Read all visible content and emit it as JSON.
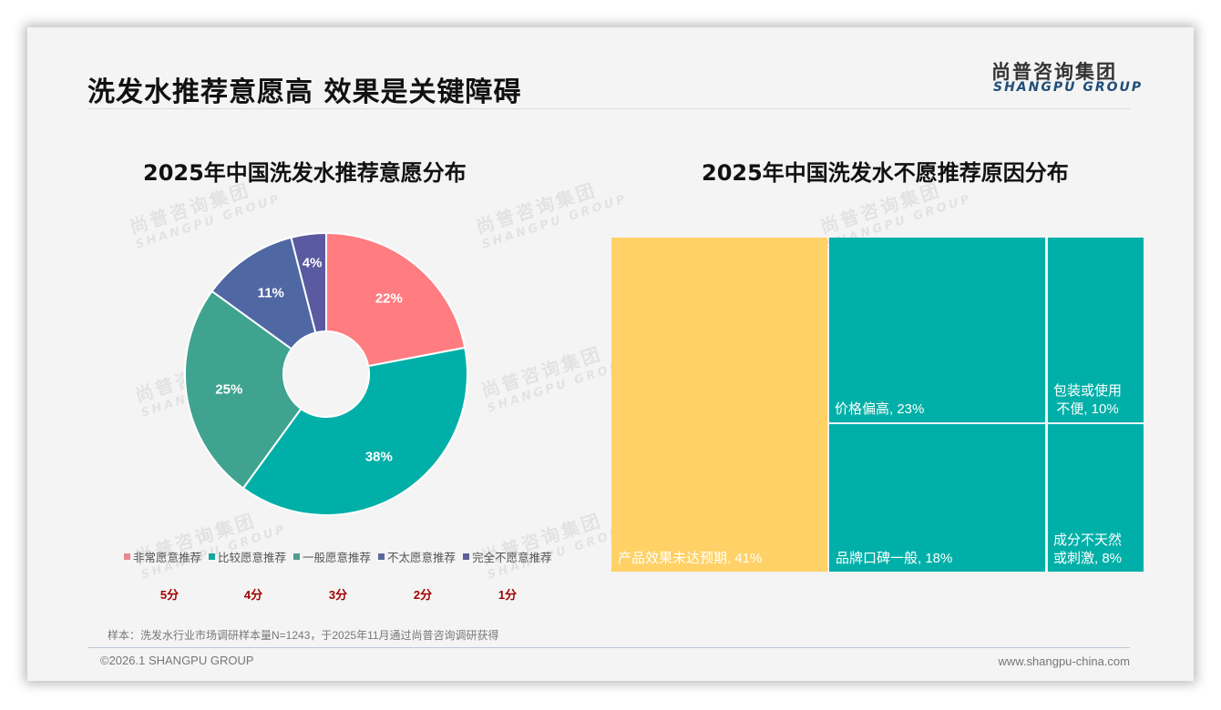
{
  "page": {
    "title": "洗发水推荐意愿高 效果是关键障碍",
    "logo_cn": "尚普咨询集团",
    "logo_en": "SHANGPU GROUP",
    "watermark_cn": "尚普咨询集团",
    "watermark_en": "SHANGPU GROUP",
    "note": "样本：洗发水行业市场调研样本量N=1243，于2025年11月通过尚普咨询调研获得",
    "copyright": "©2026.1 SHANGPU GROUP",
    "website": "www.shangpu-china.com"
  },
  "chart_data": [
    {
      "type": "pie",
      "subtype": "donut",
      "title": "2025年中国洗发水推荐意愿分布",
      "categories": [
        "非常愿意推荐",
        "比较愿意推荐",
        "一般愿意推荐",
        "不太愿意推荐",
        "完全不愿意推荐"
      ],
      "values": [
        22,
        38,
        25,
        11,
        4
      ],
      "labels": [
        "22%",
        "38%",
        "25%",
        "11%",
        "4%"
      ],
      "colors": [
        "#FF7C80",
        "#00B0A8",
        "#3FA390",
        "#4F67A3",
        "#5A5AA0"
      ],
      "scores": [
        "5分",
        "4分",
        "3分",
        "2分",
        "1分"
      ],
      "legend_position": "bottom",
      "start_angle": "12 o'clock, clockwise"
    },
    {
      "type": "treemap",
      "title": "2025年中国洗发水不愿推荐原因分布",
      "categories": [
        "产品效果未达预期",
        "价格偏高",
        "品牌口碑一般",
        "包装或使用不便",
        "成分不天然或刺激"
      ],
      "values": [
        41,
        23,
        18,
        10,
        8
      ],
      "labels": [
        "产品效果未达预期, 41%",
        "价格偏高, 23%",
        "品牌口碑一般, 18%",
        "包装或使用\n不便, 10%",
        "成分不天然\n或刺激, 8%"
      ],
      "colors": [
        "#FFD166",
        "#00B0A8",
        "#00B0A8",
        "#00B0A8",
        "#00B0A8"
      ]
    }
  ]
}
